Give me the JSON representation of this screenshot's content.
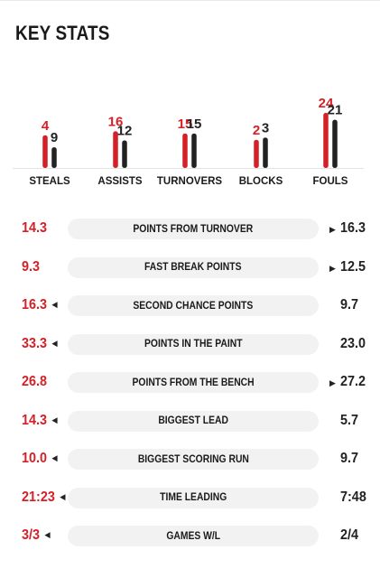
{
  "title": "KEY STATS",
  "colors": {
    "team_a": "#d62027",
    "team_b": "#222222"
  },
  "chart_data": {
    "type": "bar",
    "categories": [
      "STEALS",
      "ASSISTS",
      "TURNOVERS",
      "BLOCKS",
      "FOULS"
    ],
    "series": [
      {
        "values": [
          4,
          16,
          15,
          2,
          24
        ]
      },
      {
        "values": [
          9,
          12,
          15,
          3,
          21
        ]
      }
    ]
  },
  "rows": [
    {
      "label": "POINTS FROM TURNOVER",
      "left": "14.3",
      "right": "16.3",
      "leader": "right"
    },
    {
      "label": "FAST BREAK POINTS",
      "left": "9.3",
      "right": "12.5",
      "leader": "right"
    },
    {
      "label": "SECOND CHANCE POINTS",
      "left": "16.3",
      "right": "9.7",
      "leader": "left"
    },
    {
      "label": "POINTS IN THE PAINT",
      "left": "33.3",
      "right": "23.0",
      "leader": "left"
    },
    {
      "label": "POINTS FROM THE BENCH",
      "left": "26.8",
      "right": "27.2",
      "leader": "right"
    },
    {
      "label": "BIGGEST LEAD",
      "left": "14.3",
      "right": "5.7",
      "leader": "left"
    },
    {
      "label": "BIGGEST SCORING RUN",
      "left": "10.0",
      "right": "9.7",
      "leader": "left"
    },
    {
      "label": "TIME LEADING",
      "left": "21:23",
      "right": "7:48",
      "leader": "left"
    },
    {
      "label": "GAMES W/L",
      "left": "3/3",
      "right": "2/4",
      "leader": "left"
    }
  ]
}
